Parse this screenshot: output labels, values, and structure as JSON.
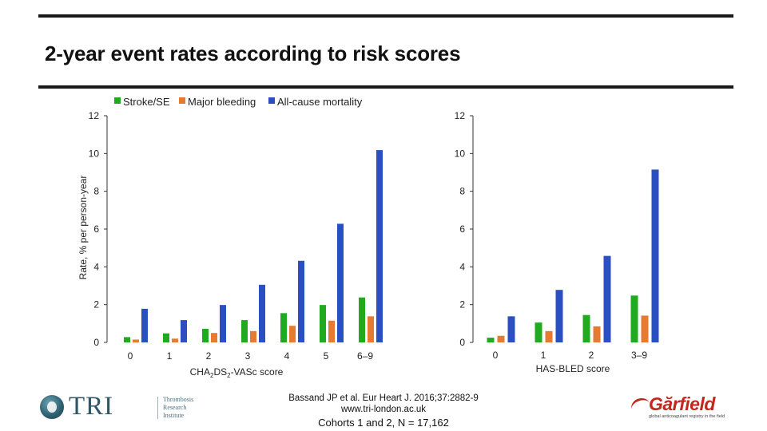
{
  "slide": {
    "title": "2-year event rates according to risk scores"
  },
  "colors": {
    "stroke_se": "#1faa1f",
    "major_bleeding": "#e57a30",
    "mortality": "#2a4fc0",
    "axis": "#333333"
  },
  "chart_data": [
    {
      "type": "bar",
      "title": "",
      "xlabel": "CHA2DS2-VASc score",
      "xlabel_parts": [
        "CHA",
        "2",
        "DS",
        "2",
        "-VASc score"
      ],
      "ylabel": "Rate, % per person-year",
      "ylim": [
        0,
        12
      ],
      "yticks": [
        0,
        2,
        4,
        6,
        8,
        10,
        12
      ],
      "categories": [
        "0",
        "1",
        "2",
        "3",
        "4",
        "5",
        "6–9"
      ],
      "series": [
        {
          "name": "Stroke/SE",
          "values": [
            0.28,
            0.48,
            0.72,
            1.18,
            1.55,
            1.98,
            2.38
          ]
        },
        {
          "name": "Major bleeding",
          "values": [
            0.15,
            0.2,
            0.5,
            0.6,
            0.88,
            1.15,
            1.38
          ]
        },
        {
          "name": "All-cause mortality",
          "values": [
            1.78,
            1.18,
            1.98,
            3.05,
            4.32,
            6.28,
            10.18
          ]
        }
      ],
      "legend": {
        "position": "top",
        "entries": [
          "Stroke/SE",
          "Major bleeding",
          "All-cause mortality"
        ]
      }
    },
    {
      "type": "bar",
      "title": "",
      "xlabel": "HAS-BLED score",
      "ylabel": "",
      "ylim": [
        0,
        12
      ],
      "yticks": [
        0,
        2,
        4,
        6,
        8,
        10,
        12
      ],
      "categories": [
        "0",
        "1",
        "2",
        "3–9"
      ],
      "series": [
        {
          "name": "Stroke/SE",
          "values": [
            0.25,
            1.05,
            1.45,
            2.48
          ]
        },
        {
          "name": "Major bleeding",
          "values": [
            0.35,
            0.6,
            0.85,
            1.42
          ]
        },
        {
          "name": "All-cause mortality",
          "values": [
            1.38,
            2.78,
            4.58,
            9.15
          ]
        }
      ]
    }
  ],
  "footer": {
    "citation": "Bassand JP et al. Eur Heart J. 2016;37:2882-9",
    "url": "www.tri-london.ac.uk",
    "cohorts": "Cohorts 1 and 2, N = 17,162"
  },
  "logos": {
    "tri_text": "TRI",
    "tri_lines": [
      "Thrombosis",
      "Research",
      "Institute"
    ],
    "garfield_text": "Gărfield",
    "garfield_tagline": "global anticoagulant registry in the field"
  }
}
